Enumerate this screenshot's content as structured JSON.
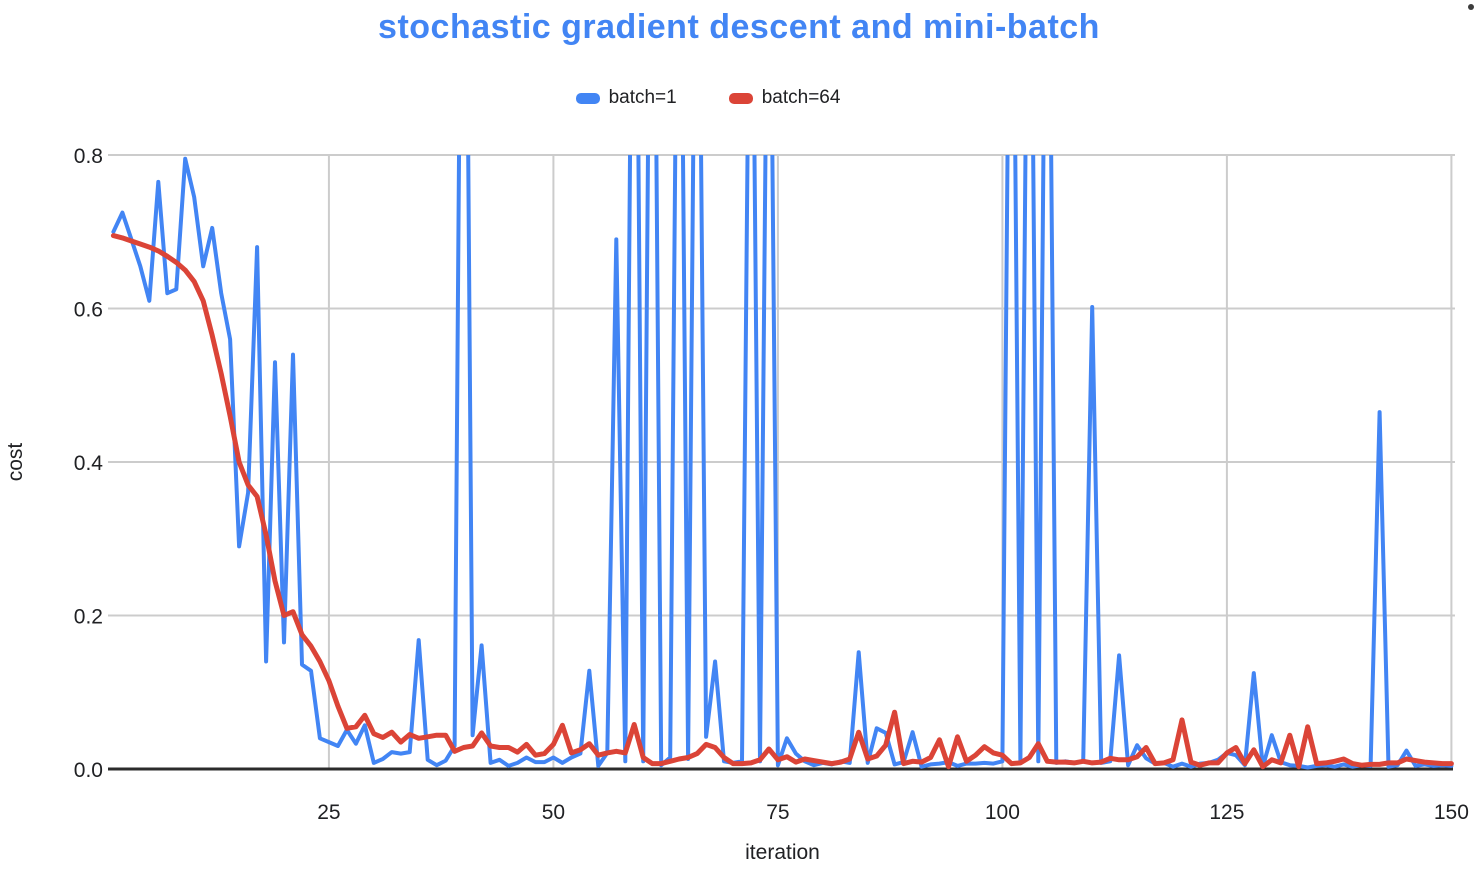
{
  "page": {
    "background": "#ffffff"
  },
  "chart_data": {
    "type": "line",
    "title": "stochastic gradient descent and mini-batch",
    "title_color": "#4285f4",
    "xlabel": "iteration",
    "ylabel": "cost",
    "x_range": [
      1,
      150
    ],
    "x_step": 1,
    "ylim": [
      0,
      0.8
    ],
    "y_ticks": [
      "0.0",
      "0.2",
      "0.4",
      "0.6",
      "0.8"
    ],
    "y_tick_values": [
      0,
      0.2,
      0.4,
      0.6,
      0.8
    ],
    "x_ticks": [
      25,
      50,
      75,
      100,
      125,
      150
    ],
    "grid": true,
    "legend_position": "top-center",
    "clipping_note": "series values greater than 0.8 are clipped at the top of the plot area",
    "styles": {
      "gridline_color": "#cccccc",
      "axis_line_color": "#2b2b2b",
      "tick_label_color": "#202124",
      "axis_label_color": "#202124"
    },
    "series": [
      {
        "name": "batch=1",
        "color": "#4285f4",
        "stroke_width": 4,
        "values": [
          0.7,
          0.725,
          0.69,
          0.655,
          0.61,
          0.765,
          0.62,
          0.625,
          0.795,
          0.745,
          0.655,
          0.705,
          0.62,
          0.56,
          0.29,
          0.36,
          0.68,
          0.14,
          0.53,
          0.165,
          0.54,
          0.136,
          0.128,
          0.04,
          0.035,
          0.03,
          0.051,
          0.033,
          0.057,
          0.008,
          0.013,
          0.022,
          0.02,
          0.022,
          0.168,
          0.012,
          0.005,
          0.011,
          0.03,
          1.6,
          0.044,
          0.161,
          0.008,
          0.012,
          0.004,
          0.008,
          0.015,
          0.009,
          0.009,
          0.015,
          0.008,
          0.015,
          0.02,
          0.128,
          0.004,
          0.021,
          0.69,
          0.01,
          1.5,
          0.01,
          1.5,
          0.005,
          0.015,
          1.4,
          0.013,
          1.4,
          0.042,
          0.14,
          0.01,
          0.008,
          0.01,
          1.3,
          0.01,
          1.3,
          0.005,
          0.04,
          0.02,
          0.01,
          0.005,
          0.008,
          0.006,
          0.01,
          0.008,
          0.152,
          0.008,
          0.053,
          0.047,
          0.006,
          0.009,
          0.048,
          0.003,
          0.006,
          0.007,
          0.009,
          0.004,
          0.007,
          0.007,
          0.008,
          0.007,
          0.01,
          1.4,
          0.01,
          1.4,
          0.01,
          1.4,
          0.008,
          0.01,
          0.008,
          0.01,
          0.602,
          0.008,
          0.01,
          0.148,
          0.005,
          0.031,
          0.014,
          0.007,
          0.008,
          0.003,
          0.007,
          0.003,
          0.007,
          0.008,
          0.012,
          0.021,
          0.018,
          0.005,
          0.125,
          0.003,
          0.044,
          0.009,
          0.005,
          0.004,
          0.002,
          0.004,
          0.005,
          0.003,
          0.006,
          0.003,
          0.005,
          0.004,
          0.465,
          0.003,
          0.005,
          0.024,
          0.004,
          0.006,
          0.004,
          0.005,
          0.004
        ]
      },
      {
        "name": "batch=64",
        "color": "#db4437",
        "stroke_width": 5,
        "values": [
          0.695,
          0.692,
          0.688,
          0.684,
          0.68,
          0.675,
          0.668,
          0.66,
          0.65,
          0.635,
          0.61,
          0.565,
          0.515,
          0.46,
          0.4,
          0.37,
          0.355,
          0.305,
          0.245,
          0.2,
          0.205,
          0.175,
          0.16,
          0.14,
          0.115,
          0.082,
          0.053,
          0.055,
          0.07,
          0.046,
          0.041,
          0.048,
          0.035,
          0.045,
          0.04,
          0.042,
          0.044,
          0.044,
          0.023,
          0.028,
          0.03,
          0.047,
          0.03,
          0.028,
          0.028,
          0.022,
          0.032,
          0.018,
          0.02,
          0.032,
          0.057,
          0.021,
          0.025,
          0.033,
          0.018,
          0.021,
          0.023,
          0.021,
          0.058,
          0.015,
          0.007,
          0.007,
          0.01,
          0.013,
          0.015,
          0.02,
          0.032,
          0.028,
          0.015,
          0.007,
          0.007,
          0.008,
          0.012,
          0.026,
          0.012,
          0.016,
          0.009,
          0.013,
          0.011,
          0.009,
          0.007,
          0.009,
          0.013,
          0.048,
          0.013,
          0.017,
          0.031,
          0.074,
          0.007,
          0.01,
          0.009,
          0.015,
          0.038,
          0.003,
          0.042,
          0.01,
          0.018,
          0.029,
          0.021,
          0.018,
          0.007,
          0.008,
          0.015,
          0.033,
          0.01,
          0.009,
          0.009,
          0.008,
          0.01,
          0.008,
          0.009,
          0.014,
          0.012,
          0.012,
          0.016,
          0.028,
          0.007,
          0.008,
          0.012,
          0.064,
          0.009,
          0.005,
          0.008,
          0.008,
          0.021,
          0.028,
          0.007,
          0.025,
          0.003,
          0.012,
          0.008,
          0.044,
          0.003,
          0.055,
          0.007,
          0.008,
          0.01,
          0.013,
          0.007,
          0.005,
          0.006,
          0.006,
          0.008,
          0.008,
          0.013,
          0.011,
          0.009,
          0.008,
          0.007,
          0.007
        ]
      }
    ]
  }
}
